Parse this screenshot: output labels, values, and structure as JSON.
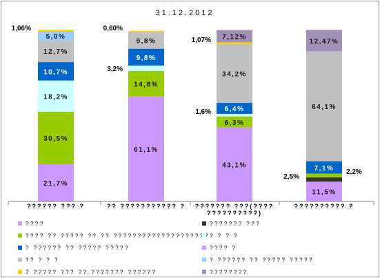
{
  "chart_data": {
    "type": "bar",
    "stacked": true,
    "percent_stacked": true,
    "title": "31.12.2012",
    "categories": [
      "?????? ??? ?",
      "?? ??????????? ?",
      "??????? ???(???? ??????????)",
      "?????????? ?"
    ],
    "ylim": [
      0,
      100
    ],
    "grid": false,
    "legend_position": "bottom",
    "series": [
      {
        "name": "????",
        "color": "#cc99ff",
        "values": [
          21.7,
          61.1,
          43.1,
          11.5
        ],
        "labels": [
          "21,7%",
          "61,1%",
          "43,1%",
          "11,5%"
        ]
      },
      {
        "name": "??????? ???",
        "color": "#333333",
        "values": [
          0,
          0,
          0,
          2.5
        ],
        "labels": [
          "",
          "",
          "",
          "2,5%"
        ]
      },
      {
        "name": "???? ?? ????? ?? ?? ????????????????????",
        "color": "#99cc00",
        "values": [
          30.5,
          14.8,
          6.3,
          2.2
        ],
        "labels": [
          "30,5%",
          "14,8%",
          "6,3%",
          "2,2%"
        ]
      },
      {
        "name": "? ? ? ?",
        "color": "#ccffff",
        "values": [
          18.2,
          3.2,
          1.6,
          0
        ],
        "labels": [
          "18,2%",
          "3,2%",
          "1,6%",
          ""
        ]
      },
      {
        "name": "? ?????? ?? ????? ?????",
        "color": "#0066cc",
        "values": [
          10.7,
          9.8,
          6.4,
          7.1
        ],
        "labels": [
          "10,7%",
          "9,8%",
          "6,4%",
          "7,1%"
        ]
      },
      {
        "name": "?? ? ? ?",
        "color": "#c0c0c0",
        "values": [
          12.7,
          9.8,
          34.2,
          64.1
        ],
        "labels": [
          "12,7%",
          "9,8%",
          "34,2%",
          "64,1%"
        ]
      },
      {
        "name": "??????????",
        "color": "#99ccff",
        "values": [
          5.0,
          0,
          0,
          0
        ],
        "labels": [
          "5,0%",
          "",
          "",
          ""
        ]
      },
      {
        "name": "? ????? ??? ?? ??????? ??????",
        "color": "#ffcc00",
        "values": [
          1.06,
          0.6,
          1.07,
          0
        ],
        "labels": [
          "1,06%",
          "0,60%",
          "1,07%",
          ""
        ]
      },
      {
        "name": "????????",
        "color": "#a18fb8",
        "values": [
          0,
          0,
          7.12,
          12.47
        ],
        "labels": [
          "",
          "",
          "7,12%",
          "12,47%"
        ]
      }
    ]
  },
  "legend": {
    "left": [
      {
        "name": "????",
        "color": "#cc99ff"
      },
      {
        "name": "???? ?? ????? ?? ?? ????????????????????",
        "color": "#99cc00"
      },
      {
        "name": "? ?????? ?? ????? ?????",
        "color": "#0066cc"
      },
      {
        "name": "?? ? ? ?",
        "color": "#c0c0c0"
      },
      {
        "name": "? ????? ??? ?? ??????? ??????",
        "color": "#ffcc00"
      }
    ],
    "right": [
      {
        "name": "??????? ???",
        "color": "#333333"
      },
      {
        "name": "? ? ? ?",
        "color": "#ccffff"
      },
      {
        "name": "???? ?",
        "color": "#cc99ff"
      },
      {
        "name": "? ?????? ?? ????? ?????",
        "color": "#99ccff"
      },
      {
        "name": "????????",
        "color": "#a18fb8"
      }
    ]
  }
}
